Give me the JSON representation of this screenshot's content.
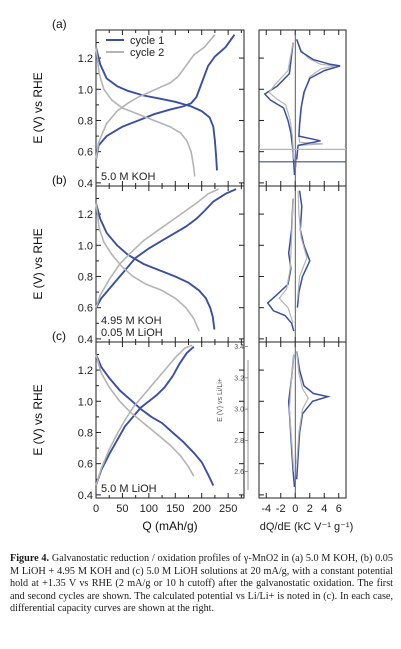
{
  "chart_data": [
    {
      "type": "line",
      "panel_label": "(a)",
      "annotation": "5.0 M KOH",
      "legend": [
        "cycle 1",
        "cycle 2"
      ],
      "legend_position": "top-left",
      "x_ticks": [
        "0",
        "50",
        "100",
        "150",
        "200",
        "250"
      ],
      "xlabel": "Q (mAh/g)",
      "xlim": [
        0,
        280
      ],
      "ylabel": "E (V) vs RHE",
      "y_ticks": [
        "0.4",
        "0.6",
        "0.8",
        "1.0",
        "1.2"
      ],
      "ylim": [
        0.38,
        1.38
      ],
      "series": [
        {
          "name": "cycle 1",
          "color": "#3b4fa0",
          "reduction": [
            [
              0,
              1.27
            ],
            [
              8,
              1.16
            ],
            [
              20,
              1.07
            ],
            [
              40,
              1.02
            ],
            [
              60,
              0.99
            ],
            [
              90,
              0.96
            ],
            [
              120,
              0.94
            ],
            [
              150,
              0.92
            ],
            [
              180,
              0.89
            ],
            [
              200,
              0.86
            ],
            [
              215,
              0.82
            ],
            [
              222,
              0.76
            ],
            [
              225,
              0.67
            ],
            [
              227,
              0.58
            ],
            [
              229,
              0.48
            ]
          ],
          "oxidation": [
            [
              0,
              0.55
            ],
            [
              5,
              0.64
            ],
            [
              20,
              0.7
            ],
            [
              50,
              0.76
            ],
            [
              80,
              0.8
            ],
            [
              110,
              0.84
            ],
            [
              140,
              0.87
            ],
            [
              165,
              0.89
            ],
            [
              180,
              0.91
            ],
            [
              190,
              0.95
            ],
            [
              200,
              1.04
            ],
            [
              212,
              1.15
            ],
            [
              225,
              1.21
            ],
            [
              245,
              1.27
            ],
            [
              262,
              1.35
            ]
          ]
        },
        {
          "name": "cycle 2",
          "color": "#b4b4b4",
          "reduction": [
            [
              0,
              1.27
            ],
            [
              6,
              1.1
            ],
            [
              15,
              1.0
            ],
            [
              30,
              0.93
            ],
            [
              50,
              0.88
            ],
            [
              80,
              0.84
            ],
            [
              110,
              0.8
            ],
            [
              140,
              0.76
            ],
            [
              160,
              0.72
            ],
            [
              172,
              0.67
            ],
            [
              180,
              0.6
            ],
            [
              184,
              0.52
            ],
            [
              187,
              0.44
            ]
          ],
          "oxidation": [
            [
              0,
              0.55
            ],
            [
              5,
              0.66
            ],
            [
              20,
              0.78
            ],
            [
              40,
              0.86
            ],
            [
              60,
              0.91
            ],
            [
              80,
              0.95
            ],
            [
              100,
              0.98
            ],
            [
              120,
              1.01
            ],
            [
              140,
              1.04
            ],
            [
              155,
              1.08
            ],
            [
              170,
              1.15
            ],
            [
              185,
              1.22
            ],
            [
              205,
              1.27
            ],
            [
              225,
              1.35
            ]
          ]
        }
      ]
    },
    {
      "type": "line",
      "panel_label": "(b)",
      "annotation": [
        "4.95 M KOH",
        "0.05 M LiOH"
      ],
      "x_ticks": [
        "0",
        "50",
        "100",
        "150",
        "200",
        "250"
      ],
      "xlabel": "Q (mAh/g)",
      "xlim": [
        0,
        280
      ],
      "ylabel": "E (V) vs RHE",
      "y_ticks": [
        "0.4",
        "0.6",
        "0.8",
        "1.0",
        "1.2"
      ],
      "ylim": [
        0.38,
        1.38
      ],
      "series": [
        {
          "name": "cycle 1",
          "color": "#3b4fa0",
          "reduction": [
            [
              0,
              1.27
            ],
            [
              8,
              1.17
            ],
            [
              20,
              1.08
            ],
            [
              40,
              1.0
            ],
            [
              60,
              0.94
            ],
            [
              90,
              0.88
            ],
            [
              120,
              0.84
            ],
            [
              150,
              0.8
            ],
            [
              175,
              0.76
            ],
            [
              195,
              0.71
            ],
            [
              208,
              0.66
            ],
            [
              216,
              0.6
            ],
            [
              221,
              0.54
            ],
            [
              224,
              0.46
            ]
          ],
          "oxidation": [
            [
              0,
              0.6
            ],
            [
              10,
              0.66
            ],
            [
              30,
              0.74
            ],
            [
              55,
              0.84
            ],
            [
              75,
              0.92
            ],
            [
              100,
              0.98
            ],
            [
              125,
              1.03
            ],
            [
              150,
              1.08
            ],
            [
              170,
              1.12
            ],
            [
              190,
              1.17
            ],
            [
              205,
              1.22
            ],
            [
              222,
              1.28
            ],
            [
              245,
              1.33
            ],
            [
              265,
              1.36
            ]
          ]
        },
        {
          "name": "cycle 2",
          "color": "#b4b4b4",
          "reduction": [
            [
              0,
              1.27
            ],
            [
              6,
              1.11
            ],
            [
              15,
              1.02
            ],
            [
              30,
              0.94
            ],
            [
              50,
              0.86
            ],
            [
              70,
              0.8
            ],
            [
              95,
              0.75
            ],
            [
              125,
              0.71
            ],
            [
              150,
              0.66
            ],
            [
              170,
              0.6
            ],
            [
              185,
              0.53
            ],
            [
              195,
              0.45
            ]
          ],
          "oxidation": [
            [
              0,
              0.6
            ],
            [
              8,
              0.68
            ],
            [
              25,
              0.78
            ],
            [
              45,
              0.88
            ],
            [
              65,
              0.95
            ],
            [
              90,
              1.03
            ],
            [
              115,
              1.09
            ],
            [
              140,
              1.15
            ],
            [
              165,
              1.21
            ],
            [
              190,
              1.27
            ],
            [
              212,
              1.33
            ],
            [
              232,
              1.36
            ]
          ]
        }
      ]
    },
    {
      "type": "line",
      "panel_label": "(c)",
      "annotation": "5.0 M LiOH",
      "x_ticks": [
        "0",
        "50",
        "100",
        "150",
        "200",
        "250"
      ],
      "xlabel": "Q (mAh/g)",
      "xlim": [
        0,
        280
      ],
      "ylabel": "E (V) vs RHE",
      "y_ticks": [
        "0.4",
        "0.6",
        "0.8",
        "1.0",
        "1.2"
      ],
      "ylim": [
        0.38,
        1.38
      ],
      "inner_axis_label": "E (V) vs Li/Li+",
      "inner_ticks": [
        "2.6",
        "2.8",
        "3.0",
        "3.2",
        "3.4"
      ],
      "series": [
        {
          "name": "cycle 1",
          "color": "#3b4fa0",
          "reduction": [
            [
              0,
              1.3
            ],
            [
              10,
              1.22
            ],
            [
              25,
              1.15
            ],
            [
              45,
              1.07
            ],
            [
              65,
              1.01
            ],
            [
              85,
              0.95
            ],
            [
              105,
              0.9
            ],
            [
              125,
              0.86
            ],
            [
              145,
              0.8
            ],
            [
              165,
              0.74
            ],
            [
              185,
              0.67
            ],
            [
              200,
              0.61
            ],
            [
              212,
              0.53
            ],
            [
              222,
              0.46
            ]
          ],
          "oxidation": [
            [
              0,
              0.46
            ],
            [
              10,
              0.56
            ],
            [
              25,
              0.66
            ],
            [
              40,
              0.75
            ],
            [
              55,
              0.84
            ],
            [
              70,
              0.9
            ],
            [
              85,
              0.96
            ],
            [
              100,
              1.0
            ],
            [
              115,
              1.04
            ],
            [
              130,
              1.09
            ],
            [
              145,
              1.16
            ],
            [
              158,
              1.24
            ],
            [
              172,
              1.31
            ],
            [
              185,
              1.35
            ]
          ]
        },
        {
          "name": "cycle 2",
          "color": "#b4b4b4",
          "reduction": [
            [
              0,
              1.3
            ],
            [
              10,
              1.18
            ],
            [
              25,
              1.09
            ],
            [
              45,
              1.0
            ],
            [
              65,
              0.93
            ],
            [
              90,
              0.86
            ],
            [
              115,
              0.79
            ],
            [
              140,
              0.72
            ],
            [
              160,
              0.65
            ],
            [
              175,
              0.58
            ],
            [
              185,
              0.52
            ]
          ],
          "oxidation": [
            [
              0,
              0.46
            ],
            [
              10,
              0.57
            ],
            [
              25,
              0.69
            ],
            [
              40,
              0.79
            ],
            [
              55,
              0.88
            ],
            [
              70,
              0.96
            ],
            [
              90,
              1.04
            ],
            [
              110,
              1.12
            ],
            [
              130,
              1.2
            ],
            [
              150,
              1.28
            ],
            [
              168,
              1.34
            ],
            [
              182,
              1.36
            ]
          ]
        }
      ]
    },
    {
      "type": "line",
      "panel": "differential capacity",
      "xlabel": "dQ/dE (kC V⁻¹ g⁻¹)",
      "x_ticks": [
        "-4",
        "-2",
        "0",
        "2",
        "4",
        "6"
      ],
      "xlim": [
        -5,
        7
      ],
      "ylim": [
        0.38,
        1.38
      ]
    }
  ],
  "caption": {
    "label": "Figure 4.",
    "text": "Galvanostatic reduction / oxidation profiles of γ-MnO2 in (a) 5.0 M KOH, (b) 0.05 M LiOH + 4.95 M KOH and (c) 5.0 M LiOH solutions at 20 mA/g, with a constant potential hold at +1.35 V vs RHE (2 mA/g or 10 h cutoff) after the galvanostatic oxidation. The first and second cycles are shown. The calculated potential vs Li/Li+ is noted in (c). In each case, differential capacity curves are shown at the right."
  }
}
